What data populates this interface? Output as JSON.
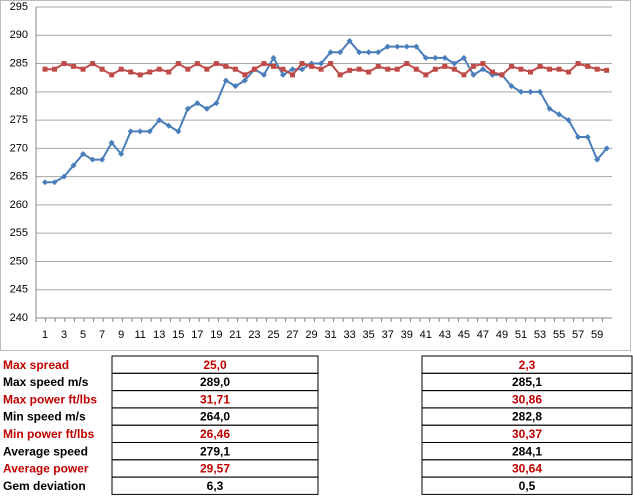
{
  "chart_data": {
    "type": "line",
    "categories": [
      1,
      null,
      3,
      null,
      5,
      null,
      7,
      null,
      9,
      null,
      11,
      null,
      13,
      null,
      15,
      null,
      17,
      null,
      19,
      null,
      21,
      null,
      23,
      null,
      25,
      null,
      27,
      null,
      29,
      null,
      31,
      null,
      33,
      null,
      35,
      null,
      37,
      null,
      39,
      null,
      41,
      null,
      43,
      null,
      45,
      null,
      47,
      null,
      49,
      null,
      51,
      null,
      53,
      null,
      55,
      null,
      57,
      null,
      59,
      null
    ],
    "series": [
      {
        "color": "#4a7ebb",
        "marker": "diamond",
        "values": [
          264,
          264,
          265,
          267,
          269,
          268,
          268,
          271,
          269,
          273,
          273,
          273,
          275,
          274,
          273,
          277,
          278,
          277,
          278,
          282,
          281,
          282,
          284,
          283,
          286,
          283,
          284,
          284,
          285,
          285,
          287,
          287,
          289,
          287,
          287,
          287,
          288,
          288,
          288,
          288,
          286,
          286,
          286,
          285,
          286,
          283,
          284,
          283,
          283,
          281,
          280,
          280,
          280,
          277,
          276,
          275,
          272,
          272,
          268,
          270
        ]
      },
      {
        "color": "#be4b48",
        "marker": "square",
        "values": [
          284,
          284,
          285,
          284.5,
          284,
          285,
          284,
          283,
          284,
          283.5,
          283,
          283.5,
          284,
          283.5,
          285,
          284,
          285,
          284,
          285,
          284.5,
          284,
          283,
          284,
          285,
          284.5,
          284,
          283,
          285,
          284.5,
          284,
          285,
          283,
          283.8,
          284,
          283.5,
          284.5,
          284,
          284,
          285,
          284,
          283,
          284,
          284.5,
          284,
          283,
          284.5,
          285,
          283.5,
          283,
          284.5,
          284,
          283.5,
          284.5,
          284,
          284,
          283.5,
          285,
          284.5,
          284,
          283.8
        ]
      }
    ],
    "ylim": [
      240,
      295
    ],
    "yticks": [
      240,
      245,
      250,
      255,
      260,
      265,
      270,
      275,
      280,
      285,
      290,
      295
    ],
    "grid": true
  },
  "table": {
    "rows": [
      {
        "label": "Max spread",
        "color": "#c00000",
        "values": [
          "25,0",
          "2,3"
        ]
      },
      {
        "label": "Max speed m/s",
        "color": "#000000",
        "values": [
          "289,0",
          "285,1"
        ]
      },
      {
        "label": "Max power ft/lbs",
        "color": "#c00000",
        "values": [
          "31,71",
          "30,86"
        ]
      },
      {
        "label": "Min speed m/s",
        "color": "#000000",
        "values": [
          "264,0",
          "282,8"
        ]
      },
      {
        "label": "Min power ft/lbs",
        "color": "#c00000",
        "values": [
          "26,46",
          "30,37"
        ]
      },
      {
        "label": "Average speed",
        "color": "#000000",
        "values": [
          "279,1",
          "284,1"
        ]
      },
      {
        "label": "Average power",
        "color": "#c00000",
        "values": [
          "29,57",
          "30,64"
        ]
      },
      {
        "label": "Gem deviation",
        "color": "#000000",
        "values": [
          "6,3",
          "0,5"
        ]
      }
    ]
  }
}
